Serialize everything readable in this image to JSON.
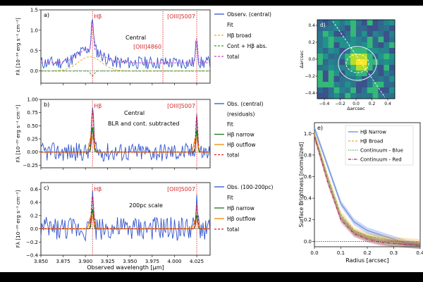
{
  "colors": {
    "observed": "#3355cc",
    "fit": "#000000",
    "broad": "#f5a623",
    "cont": "#2a9d2a",
    "total": "#cc44cc",
    "narrow": "#1a7a1a",
    "outflow": "#f08c00",
    "red_total": "#e41a1c",
    "marker": "#d62728"
  },
  "chart_data": [
    {
      "type": "line",
      "panel": "a)",
      "label": "Central",
      "ylabel": "Fλ [10⁻²⁰ erg s⁻¹ cm⁻²]",
      "xlim": [
        3.85,
        4.04
      ],
      "ylim": [
        -0.3,
        1.5
      ],
      "yticks": [
        "0.0",
        "0.5",
        "1.0",
        "1.5"
      ],
      "lines": [
        {
          "name": "Hβ",
          "x": 3.908
        },
        {
          "name": "[OIII]4860",
          "x": 3.987
        },
        {
          "name": "[OIII]5007",
          "x": 4.025
        }
      ],
      "legend": [
        "Observ. (central)",
        "Fit",
        "Hβ broad",
        "Cont + Hβ abs.",
        "total"
      ]
    },
    {
      "type": "line",
      "panel": "b)",
      "label": "Central",
      "label2": "BLR and cont. subtracted",
      "xlim": [
        3.85,
        4.04
      ],
      "ylim": [
        -0.3,
        1.0
      ],
      "yticks": [
        "−0.25",
        "0.00",
        "0.25",
        "0.50",
        "0.75",
        "1.00"
      ],
      "lines": [
        {
          "name": "Hβ",
          "x": 3.908
        },
        {
          "name": "[OIII]5007",
          "x": 4.025
        }
      ],
      "legend": [
        "Obs. (central)",
        "(residuals)",
        "Fit",
        "Hβ narrow",
        "Hβ outflow",
        "total"
      ]
    },
    {
      "type": "line",
      "panel": "c)",
      "label": "200pc scale",
      "xlabel": "Observed wavelength [μm]",
      "xlim": [
        3.85,
        4.04
      ],
      "xticks": [
        "3.850",
        "3.875",
        "3.900",
        "3.925",
        "3.950",
        "3.975",
        "4.000",
        "4.025"
      ],
      "ylim": [
        -0.4,
        0.7
      ],
      "yticks": [
        "−0.4",
        "−0.2",
        "0.0",
        "0.2",
        "0.4",
        "0.6"
      ],
      "lines": [
        {
          "name": "Hβ",
          "x": 3.908
        },
        {
          "name": "[OIII]5007",
          "x": 4.025
        }
      ],
      "legend": [
        "Obs. (100-200pc)",
        "Fit",
        "Hβ narrow",
        "Hβ outflow",
        "total"
      ]
    },
    {
      "type": "heatmap",
      "panel": "d)",
      "xlabel": "Δarcsec",
      "ylabel": "Δarcsec",
      "xticks": [
        "−0.4",
        "−0.2",
        "0.0",
        "0.2",
        "0.4"
      ],
      "yticks": [
        "−0.4",
        "−0.2",
        "0.0",
        "0.2",
        "0.4"
      ]
    },
    {
      "type": "line",
      "panel": "e)",
      "xlabel": "Radius [arcsec]",
      "ylabel": "Surface Brightness [normalized]",
      "xlim": [
        0.0,
        0.4
      ],
      "xticks": [
        "0.0",
        "0.1",
        "0.2",
        "0.3",
        "0.4"
      ],
      "ylim": [
        -0.05,
        1.1
      ],
      "yticks": [
        "0.0",
        "0.2",
        "0.4",
        "0.6",
        "0.8",
        "1.0"
      ],
      "x": [
        0.0,
        0.05,
        0.1,
        0.15,
        0.2,
        0.25,
        0.3,
        0.35,
        0.4
      ],
      "series": [
        {
          "name": "Hβ Narrow",
          "values": [
            1.05,
            0.7,
            0.35,
            0.18,
            0.1,
            0.06,
            0.02,
            -0.02,
            -0.03
          ]
        },
        {
          "name": "Hβ Broad",
          "values": [
            1.0,
            0.6,
            0.25,
            0.1,
            0.05,
            0.03,
            0.01,
            0.0,
            -0.01
          ]
        },
        {
          "name": "Continuum - Blue",
          "values": [
            0.98,
            0.58,
            0.22,
            0.08,
            0.03,
            0.0,
            -0.02,
            -0.03,
            -0.04
          ]
        },
        {
          "name": "Continuum - Red",
          "values": [
            0.97,
            0.55,
            0.2,
            0.07,
            0.02,
            -0.01,
            -0.02,
            -0.03,
            -0.04
          ]
        }
      ]
    }
  ]
}
